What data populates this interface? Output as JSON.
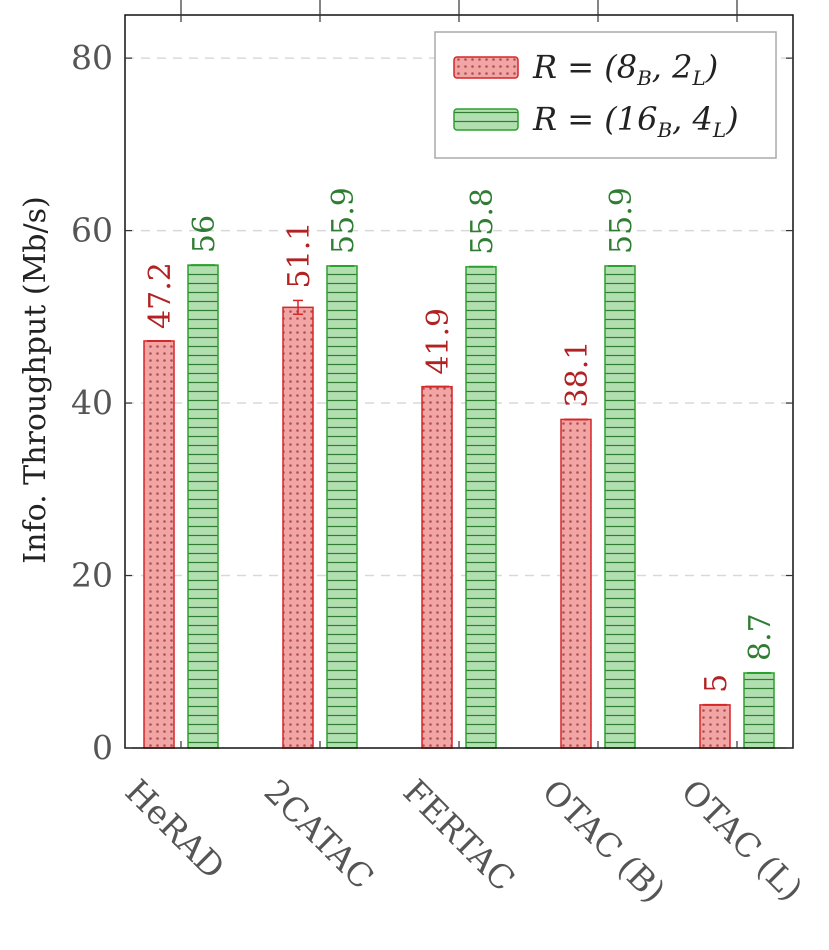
{
  "chart_data": {
    "type": "bar",
    "title": "",
    "xlabel": "",
    "ylabel": "Info. Throughput (Mb/s)",
    "ylim": [
      0,
      85
    ],
    "yticks": [
      0,
      20,
      40,
      60,
      80
    ],
    "grid": "horizontal-dashed",
    "legend_position": "top-right",
    "categories": [
      "HeRAD",
      "2CATAC",
      "FERTAC",
      "OTAC (B)",
      "OTAC (L)"
    ],
    "series": [
      {
        "name": "R = (8_B, 2_L)",
        "legend_main": "R = (8",
        "legend_sub1": "B",
        "legend_mid": ", 2",
        "legend_sub2": "L",
        "legend_end": ")",
        "values": [
          47.2,
          51.1,
          41.9,
          38.1,
          5
        ],
        "labels": [
          "47.2",
          "51.1",
          "41.9",
          "38.1",
          "5"
        ],
        "error": [
          0,
          0.8,
          0,
          0,
          0
        ],
        "fill": "#f2a5a5",
        "stroke": "#d62728",
        "label_color": "#b22222",
        "pattern": "dots"
      },
      {
        "name": "R = (16_B, 4_L)",
        "legend_main": "R = (16",
        "legend_sub1": "B",
        "legend_mid": ", 4",
        "legend_sub2": "L",
        "legend_end": ")",
        "values": [
          56,
          55.9,
          55.8,
          55.9,
          8.7
        ],
        "labels": [
          "56",
          "55.9",
          "55.8",
          "55.9",
          "8.7"
        ],
        "error": [
          0,
          0,
          0,
          0,
          0
        ],
        "fill": "#b2dfb0",
        "stroke": "#2ca02c",
        "label_color": "#2e7d32",
        "pattern": "hlines"
      }
    ]
  }
}
